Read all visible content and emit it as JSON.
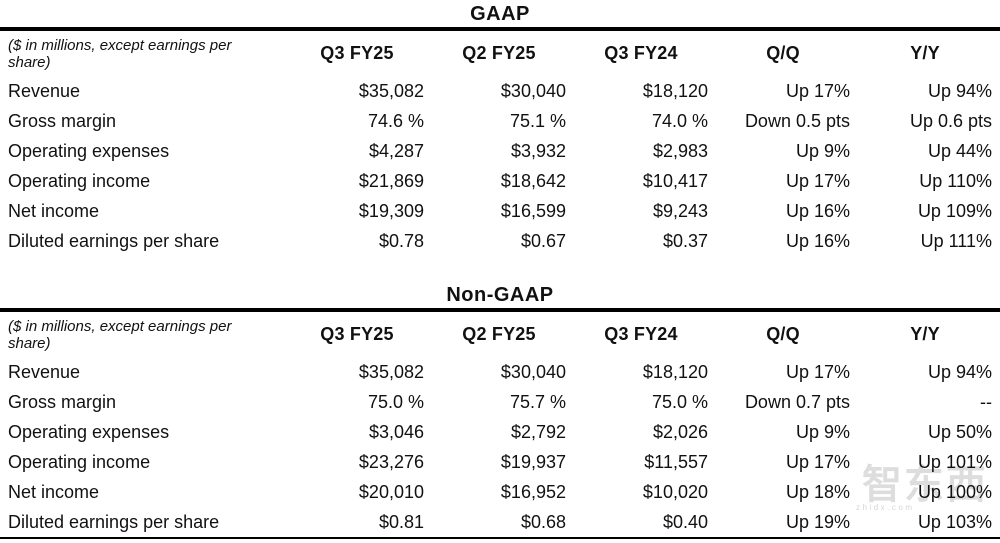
{
  "colors": {
    "text": "#111111",
    "rule": "#000000",
    "watermark_gray": "#c9c9c9"
  },
  "tables": [
    {
      "title": "GAAP",
      "note": "($ in millions, except earnings per share)",
      "columns": [
        "Q3 FY25",
        "Q2 FY25",
        "Q3 FY24",
        "Q/Q",
        "Y/Y"
      ],
      "rows": [
        {
          "label": "Revenue",
          "values": [
            "$35,082",
            "$30,040",
            "$18,120",
            "Up 17%",
            "Up 94%"
          ]
        },
        {
          "label": "Gross margin",
          "values": [
            "74.6 %",
            "75.1 %",
            "74.0 %",
            "Down 0.5 pts",
            "Up 0.6 pts"
          ]
        },
        {
          "label": "Operating expenses",
          "values": [
            "$4,287",
            "$3,932",
            "$2,983",
            "Up 9%",
            "Up 44%"
          ]
        },
        {
          "label": "Operating income",
          "values": [
            "$21,869",
            "$18,642",
            "$10,417",
            "Up 17%",
            "Up 110%"
          ]
        },
        {
          "label": "Net income",
          "values": [
            "$19,309",
            "$16,599",
            "$9,243",
            "Up 16%",
            "Up 109%"
          ]
        },
        {
          "label": "Diluted earnings per share",
          "values": [
            "$0.78",
            "$0.67",
            "$0.37",
            "Up 16%",
            "Up 111%"
          ]
        }
      ]
    },
    {
      "title": "Non-GAAP",
      "note": "($ in millions, except earnings per share)",
      "columns": [
        "Q3 FY25",
        "Q2 FY25",
        "Q3 FY24",
        "Q/Q",
        "Y/Y"
      ],
      "rows": [
        {
          "label": "Revenue",
          "values": [
            "$35,082",
            "$30,040",
            "$18,120",
            "Up 17%",
            "Up 94%"
          ]
        },
        {
          "label": "Gross margin",
          "values": [
            "75.0 %",
            "75.7 %",
            "75.0 %",
            "Down 0.7 pts",
            "--"
          ]
        },
        {
          "label": "Operating expenses",
          "values": [
            "$3,046",
            "$2,792",
            "$2,026",
            "Up 9%",
            "Up 50%"
          ]
        },
        {
          "label": "Operating income",
          "values": [
            "$23,276",
            "$19,937",
            "$11,557",
            "Up 17%",
            "Up 101%"
          ]
        },
        {
          "label": "Net income",
          "values": [
            "$20,010",
            "$16,952",
            "$10,020",
            "Up 18%",
            "Up 100%"
          ]
        },
        {
          "label": "Diluted earnings per share",
          "values": [
            "$0.81",
            "$0.68",
            "$0.40",
            "Up 19%",
            "Up 103%"
          ]
        }
      ]
    }
  ],
  "watermark": {
    "logo": "智东西",
    "subtext": "zhidx.com"
  }
}
